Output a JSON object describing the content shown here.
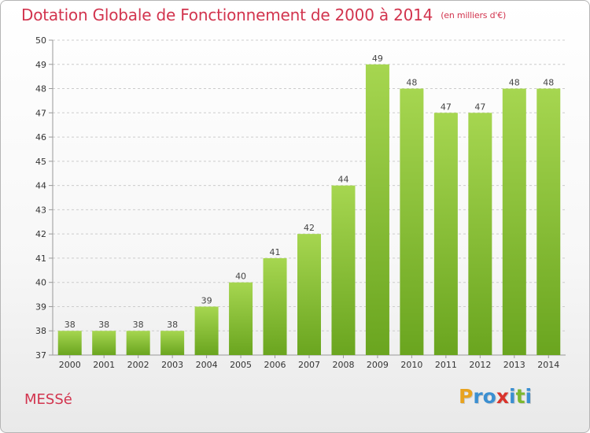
{
  "header": {
    "title": "Dotation Globale de Fonctionnement de 2000 à 2014",
    "subtitle": "(en milliers d'€)"
  },
  "footer": {
    "place": "MESSé",
    "logo_letters": [
      "P",
      "r",
      "o",
      "x",
      "i",
      "t",
      "i"
    ],
    "logo_colors": [
      "#e8a31f",
      "#3b8fd1",
      "#3b8fd1",
      "#d9332b",
      "#3b8fd1",
      "#7cb82f",
      "#3b8fd1"
    ]
  },
  "colors": {
    "bar_light": "#a6d650",
    "bar_dark": "#6aa51f",
    "grid": "#cccccc",
    "accent": "#d2344e"
  },
  "chart_data": {
    "type": "bar",
    "title": "Dotation Globale de Fonctionnement de 2000 à 2014",
    "subtitle": "(en milliers d'€)",
    "categories": [
      "2000",
      "2001",
      "2002",
      "2003",
      "2004",
      "2005",
      "2006",
      "2007",
      "2008",
      "2009",
      "2010",
      "2011",
      "2012",
      "2013",
      "2014"
    ],
    "values": [
      38,
      38,
      38,
      38,
      39,
      40,
      41,
      42,
      44,
      49,
      48,
      47,
      47,
      48,
      48
    ],
    "yticks": [
      37,
      38,
      39,
      40,
      41,
      42,
      43,
      44,
      45,
      46,
      47,
      48,
      49,
      50
    ],
    "ylim": [
      37,
      50
    ],
    "xlabel": "",
    "ylabel": "",
    "grid": true
  }
}
